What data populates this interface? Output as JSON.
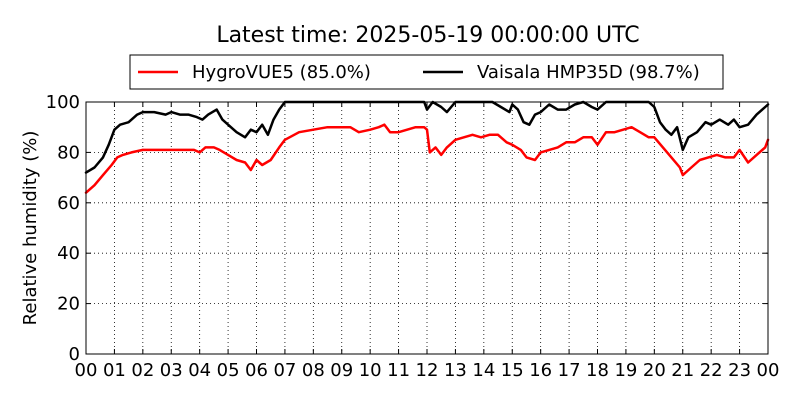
{
  "chart_data": {
    "type": "line",
    "title": "Latest time: 2025-05-19 00:00:00 UTC",
    "xlabel": "",
    "ylabel": "Relative humidity (%)",
    "xlim": [
      0,
      24
    ],
    "ylim": [
      0,
      100
    ],
    "grid": true,
    "legend_placement": "top-center",
    "x_ticks": [
      0,
      1,
      2,
      3,
      4,
      5,
      6,
      7,
      8,
      9,
      10,
      11,
      12,
      13,
      14,
      15,
      16,
      17,
      18,
      19,
      20,
      21,
      22,
      23,
      24
    ],
    "x_tick_labels": [
      "00",
      "01",
      "02",
      "03",
      "04",
      "05",
      "06",
      "07",
      "08",
      "09",
      "10",
      "11",
      "12",
      "13",
      "14",
      "15",
      "16",
      "17",
      "18",
      "19",
      "20",
      "21",
      "22",
      "23",
      "00"
    ],
    "y_ticks": [
      0,
      20,
      40,
      60,
      80,
      100
    ],
    "y_tick_labels": [
      "0",
      "20",
      "40",
      "60",
      "80",
      "100"
    ],
    "series": [
      {
        "name": "HygroVUE5 (85.0%)",
        "color": "#ff0000",
        "x": [
          0,
          0.3,
          0.6,
          0.9,
          1.1,
          1.3,
          1.6,
          2.0,
          2.5,
          3.0,
          3.5,
          3.8,
          4.0,
          4.2,
          4.5,
          4.7,
          5.0,
          5.3,
          5.6,
          5.8,
          6.0,
          6.2,
          6.5,
          6.8,
          7.0,
          7.5,
          8.0,
          8.5,
          9.0,
          9.3,
          9.6,
          10.0,
          10.3,
          10.5,
          10.7,
          11.0,
          11.3,
          11.6,
          11.9,
          12.0,
          12.1,
          12.3,
          12.5,
          12.7,
          13.0,
          13.3,
          13.6,
          13.9,
          14.2,
          14.5,
          14.8,
          15.0,
          15.3,
          15.5,
          15.8,
          16.0,
          16.3,
          16.6,
          16.9,
          17.2,
          17.5,
          17.8,
          18.0,
          18.3,
          18.6,
          18.9,
          19.2,
          19.5,
          19.8,
          20.0,
          20.3,
          20.6,
          20.9,
          21.0,
          21.3,
          21.6,
          21.9,
          22.2,
          22.5,
          22.8,
          23.0,
          23.3,
          23.6,
          23.9,
          24
        ],
        "values": [
          64,
          67,
          71,
          75,
          78,
          79,
          80,
          81,
          81,
          81,
          81,
          81,
          80,
          82,
          82,
          81,
          79,
          77,
          76,
          73,
          77,
          75,
          77,
          82,
          85,
          88,
          89,
          90,
          90,
          90,
          88,
          89,
          90,
          91,
          88,
          88,
          89,
          90,
          90,
          89,
          80,
          82,
          79,
          82,
          85,
          86,
          87,
          86,
          87,
          87,
          84,
          83,
          81,
          78,
          77,
          80,
          81,
          82,
          84,
          84,
          86,
          86,
          83,
          88,
          88,
          89,
          90,
          88,
          86,
          86,
          82,
          78,
          74,
          71,
          74,
          77,
          78,
          79,
          78,
          78,
          81,
          76,
          79,
          82,
          85
        ]
      },
      {
        "name": "Vaisala HMP35D (98.7%)",
        "color": "#000000",
        "x": [
          0,
          0.3,
          0.6,
          0.8,
          1.0,
          1.2,
          1.5,
          1.8,
          2.0,
          2.4,
          2.8,
          3.0,
          3.3,
          3.6,
          3.9,
          4.1,
          4.3,
          4.6,
          4.8,
          5.0,
          5.3,
          5.6,
          5.8,
          6.0,
          6.2,
          6.4,
          6.6,
          6.8,
          7.0,
          7.5,
          8.0,
          8.5,
          9.0,
          9.5,
          10.0,
          10.5,
          11.0,
          11.5,
          11.9,
          12.0,
          12.2,
          12.5,
          12.7,
          13.0,
          13.5,
          14.0,
          14.3,
          14.6,
          14.9,
          15.0,
          15.2,
          15.4,
          15.6,
          15.8,
          16.0,
          16.3,
          16.6,
          16.9,
          17.2,
          17.5,
          17.8,
          18.0,
          18.3,
          18.6,
          18.9,
          19.2,
          19.5,
          19.8,
          20.0,
          20.2,
          20.4,
          20.6,
          20.8,
          21.0,
          21.2,
          21.5,
          21.8,
          22.0,
          22.3,
          22.6,
          22.8,
          23.0,
          23.3,
          23.6,
          23.9,
          24
        ],
        "values": [
          72,
          74,
          78,
          83,
          89,
          91,
          92,
          95,
          96,
          96,
          95,
          96,
          95,
          95,
          94,
          93,
          95,
          97,
          93,
          91,
          88,
          86,
          89,
          88,
          91,
          87,
          93,
          97,
          100,
          100,
          100,
          100,
          100,
          100,
          100,
          100,
          100,
          100,
          100,
          97,
          100,
          98,
          96,
          100,
          100,
          100,
          100,
          98,
          96,
          99,
          97,
          92,
          91,
          95,
          96,
          99,
          97,
          97,
          99,
          100,
          98,
          97,
          100,
          100,
          100,
          100,
          100,
          100,
          98,
          92,
          89,
          87,
          90,
          81,
          86,
          88,
          92,
          91,
          93,
          91,
          93,
          90,
          91,
          95,
          98,
          99
        ]
      }
    ]
  }
}
